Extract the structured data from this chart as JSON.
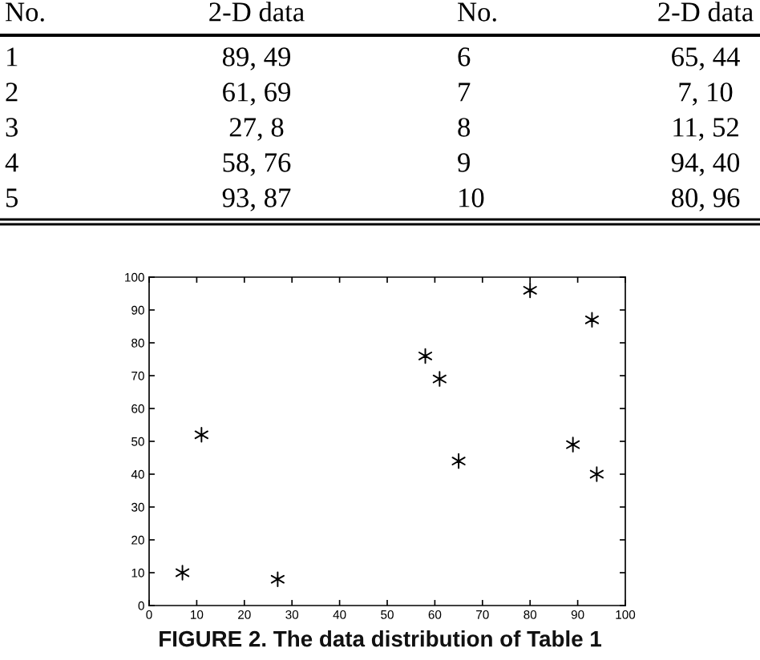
{
  "chart_data": {
    "type": "scatter",
    "x": [
      89,
      61,
      27,
      58,
      93,
      65,
      7,
      11,
      94,
      80
    ],
    "values": [
      49,
      69,
      8,
      76,
      87,
      44,
      10,
      52,
      40,
      96
    ],
    "color": "#000000",
    "marker": "cross",
    "xlim": [
      0,
      100
    ],
    "ylim": [
      0,
      100
    ],
    "xticks": [
      0,
      10,
      20,
      30,
      40,
      50,
      60,
      70,
      80,
      90,
      100
    ],
    "yticks": [
      0,
      10,
      20,
      30,
      40,
      50,
      60,
      70,
      80,
      90,
      100
    ],
    "annotations": [
      "No.",
      "2-D data",
      "No.",
      "2-D data",
      "1",
      "89, 49",
      "2",
      "61, 69",
      "3",
      "27, 8",
      "4",
      "58, 76",
      "5",
      "93, 87",
      "6",
      "65, 44",
      "7",
      "7, 10",
      "8",
      "11, 52",
      "9",
      "94, 40",
      "10",
      "80, 96",
      "FIGURE 2. The data distribution of Table 1"
    ]
  }
}
